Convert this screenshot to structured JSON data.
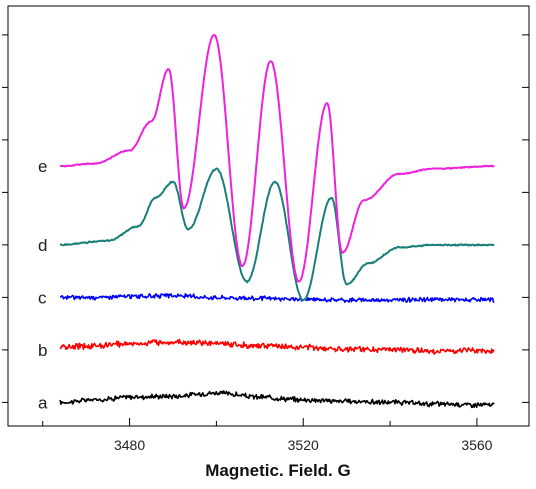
{
  "chart_data": {
    "type": "line",
    "title": "",
    "xlabel": "Magnetic. Field. G",
    "ylabel": "",
    "xlim": [
      3452,
      3572
    ],
    "xticks": [
      3480,
      3520,
      3560
    ],
    "grid": false,
    "legend": "none",
    "series": [
      {
        "name": "a",
        "color": "#000000",
        "baseline": 0.0,
        "x": [
          3464,
          3472,
          3480,
          3490,
          3500,
          3510,
          3520,
          3530,
          3540,
          3550,
          3564
        ],
        "y": [
          0.0,
          0.05,
          0.1,
          0.12,
          0.18,
          0.1,
          0.05,
          0.02,
          0.0,
          -0.03,
          -0.05
        ],
        "noise": 0.07
      },
      {
        "name": "b",
        "color": "#ff0000",
        "baseline": 1.0,
        "x": [
          3464,
          3472,
          3480,
          3490,
          3500,
          3510,
          3520,
          3530,
          3540,
          3550,
          3564
        ],
        "y": [
          1.05,
          1.08,
          1.12,
          1.15,
          1.12,
          1.08,
          1.05,
          1.02,
          1.0,
          0.98,
          0.98
        ],
        "noise": 0.08
      },
      {
        "name": "c",
        "color": "#0000ff",
        "baseline": 2.0,
        "x": [
          3464,
          3472,
          3480,
          3490,
          3500,
          3510,
          3520,
          3530,
          3540,
          3550,
          3564
        ],
        "y": [
          2.0,
          2.0,
          2.02,
          2.03,
          2.0,
          1.98,
          1.96,
          1.95,
          1.95,
          1.96,
          1.95
        ],
        "noise": 0.06
      },
      {
        "name": "d",
        "color": "#1a7f78",
        "baseline": 3.0,
        "x": [
          3464,
          3475,
          3482,
          3486,
          3490,
          3493.5,
          3500,
          3507,
          3513.5,
          3520,
          3526.5,
          3530,
          3535,
          3542,
          3550,
          3564
        ],
        "y": [
          3.0,
          3.08,
          3.35,
          3.9,
          4.2,
          3.3,
          4.45,
          2.3,
          4.2,
          1.95,
          3.9,
          2.25,
          2.65,
          2.95,
          3.0,
          3.0
        ],
        "noise": 0.02
      },
      {
        "name": "e",
        "color": "#ee22dd",
        "baseline": 4.5,
        "x": [
          3464,
          3472,
          3480,
          3485,
          3489,
          3492.5,
          3499.5,
          3506,
          3512.5,
          3519,
          3525.5,
          3529,
          3534,
          3542,
          3550,
          3564
        ],
        "y": [
          4.5,
          4.55,
          4.8,
          5.35,
          6.35,
          3.7,
          7.0,
          2.6,
          6.5,
          2.3,
          5.7,
          2.85,
          3.85,
          4.35,
          4.45,
          4.5
        ],
        "noise": 0.015
      }
    ]
  }
}
